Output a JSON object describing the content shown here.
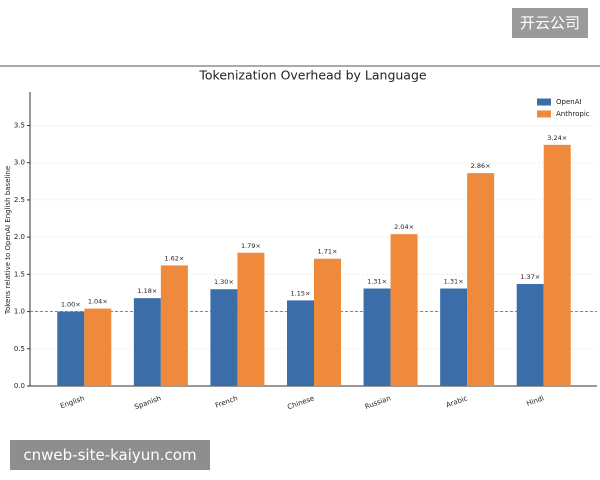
{
  "header": {
    "button": "开云公司"
  },
  "watermark": "cnweb-site-kaiyun.com",
  "chart_data": {
    "type": "bar",
    "title": "Tokenization Overhead by Language",
    "y_label": "Tokens relative to OpenAI English baseline",
    "categories": [
      "English",
      "Spanish",
      "French",
      "Chinese",
      "Russian",
      "Arabic",
      "Hindi"
    ],
    "series": [
      {
        "name": "OpenAI",
        "color": "#3b6ea8",
        "values": [
          1.0,
          1.18,
          1.3,
          1.15,
          1.31,
          1.31,
          1.37
        ],
        "value_labels": [
          "1.00×",
          "1.18×",
          "1.30×",
          "1.15×",
          "1.31×",
          "1.31×",
          "1.37×"
        ]
      },
      {
        "name": "Anthropic",
        "color": "#ef8a3c",
        "values": [
          1.04,
          1.62,
          1.79,
          1.71,
          2.04,
          2.86,
          3.24
        ],
        "value_labels": [
          "1.04×",
          "1.62×",
          "1.79×",
          "1.71×",
          "2.04×",
          "2.86×",
          "3.24×"
        ]
      }
    ],
    "ylim": [
      0,
      3.95
    ],
    "yticks": [
      {
        "value": 0,
        "label": "0.0"
      },
      0.5,
      {
        "value": 1,
        "label": "1.0"
      },
      1.5,
      {
        "value": 2,
        "label": "2.0"
      },
      2.5,
      {
        "value": 3,
        "label": "3.0"
      },
      3.5
    ],
    "hline": 1,
    "grid": true,
    "legend": "upper-right"
  }
}
